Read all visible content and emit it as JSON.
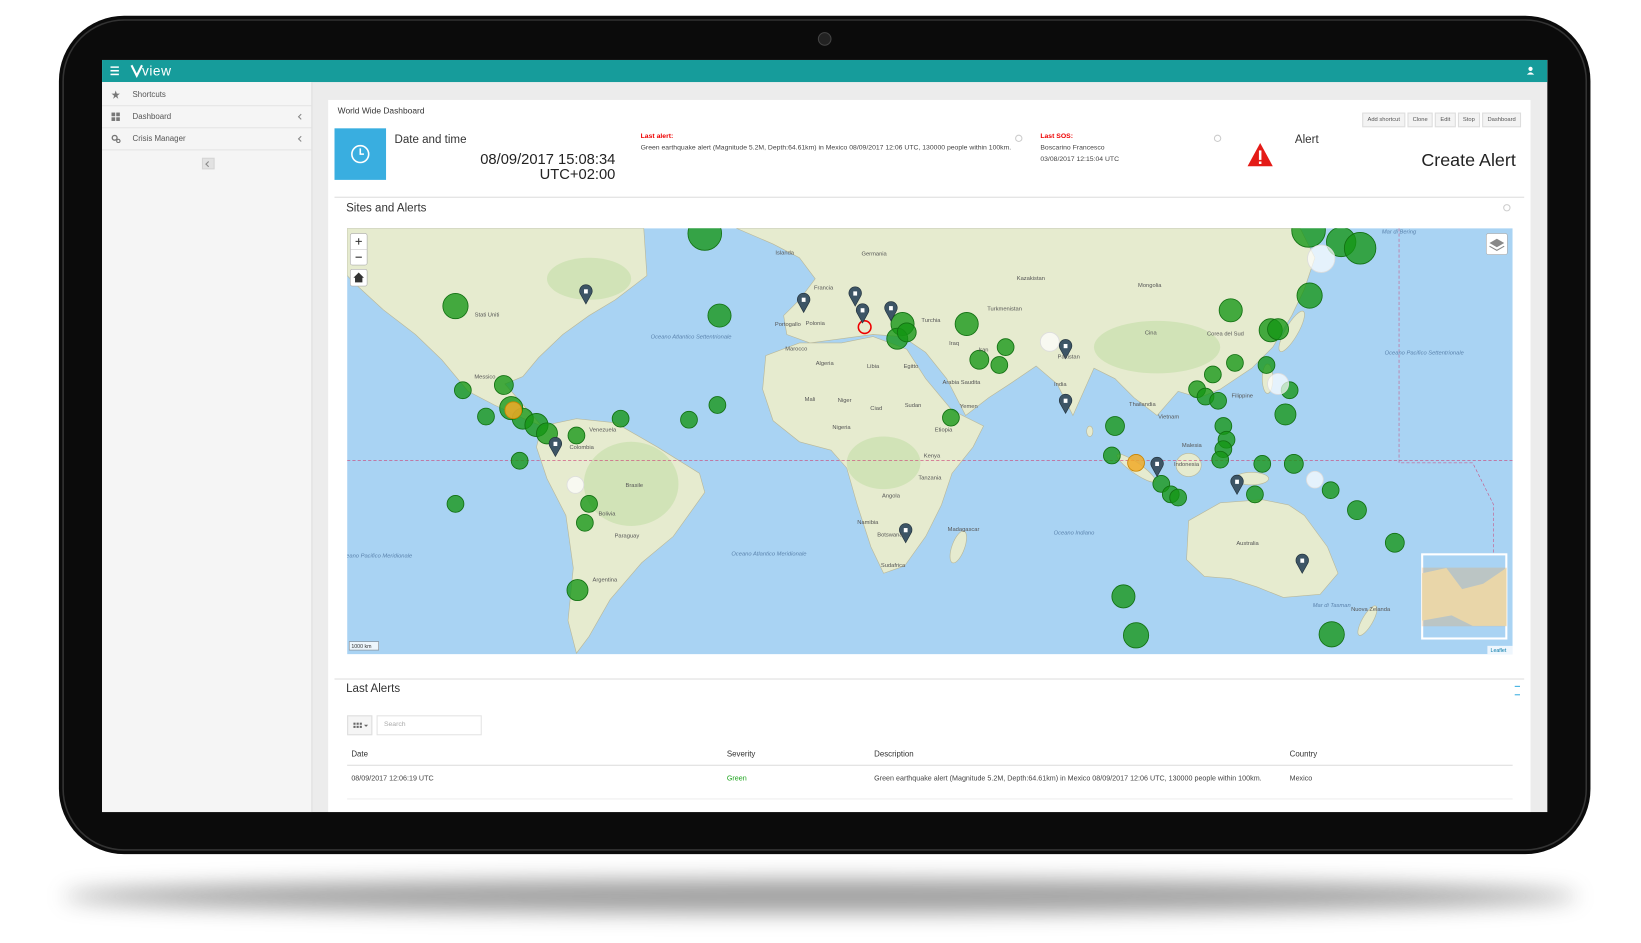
{
  "app": {
    "logo": "view"
  },
  "sidebar": {
    "items": [
      "Shortcuts",
      "Dashboard",
      "Crisis Manager"
    ]
  },
  "header": {
    "title": "World Wide Dashboard",
    "buttons": [
      "Add shortcut",
      "Clone",
      "Edit",
      "Stop",
      "Dashboard"
    ]
  },
  "datetime": {
    "label": "Date and time",
    "value": "08/09/2017 15:08:34",
    "timezone": "UTC+02:00"
  },
  "last_alert": {
    "label": "Last alert:",
    "text": "Green earthquake alert (Magnitude 5.2M, Depth:64.61km) in Mexico 08/09/2017 12:06 UTC, 130000 people within 100km."
  },
  "last_sos": {
    "label": "Last SOS:",
    "name": "Boscarino Francesco",
    "date": "03/08/2017 12:15:04 UTC"
  },
  "alert": {
    "label": "Alert",
    "action": "Create Alert"
  },
  "map": {
    "title": "Sites and Alerts",
    "labels": [
      "Stati Uniti",
      "Messico",
      "Colombia",
      "Venezuela",
      "Brasile",
      "Bolivia",
      "Paraguay",
      "Argentina",
      "Oceano Atlantico Settentrionale",
      "Oceano Atlantico Meridionale",
      "Oceano Pacifico Meridionale",
      "Islanda",
      "Francia",
      "Germania",
      "Polonia",
      "Portogallo",
      "Marocco",
      "Algeria",
      "Libia",
      "Egitto",
      "Mali",
      "Niger",
      "Ciad",
      "Sudan",
      "Nigeria",
      "Etiopia",
      "Kenya",
      "Tanzania",
      "Angola",
      "Namibia",
      "Botswana",
      "Sudafrica",
      "Madagascar",
      "Turchia",
      "Iraq",
      "Iran",
      "Arabia Saudita",
      "Yemen",
      "Kazakistan",
      "Turkmenistan",
      "Pakistan",
      "India",
      "Mongolia",
      "Cina",
      "Corea del Sud",
      "Thailandia",
      "Vietnam",
      "Filippine",
      "Malesia",
      "Indonesia",
      "Australia",
      "Nuova Zelanda",
      "Oceano Indiano",
      "Oceano Pacifico Settentrionale",
      "Mar di Bering",
      "Mar di Tasman"
    ],
    "scale": "1000 km",
    "attribution": "Leaflet"
  },
  "alerts_table": {
    "title": "Last Alerts",
    "search_placeholder": "Search",
    "columns": [
      "Date",
      "Severity",
      "Description",
      "Country"
    ],
    "rows": [
      [
        "08/09/2017 12:06:19 UTC",
        "Green",
        "Green earthquake alert (Magnitude 5.2M, Depth:64.61km) in Mexico 08/09/2017 12:06 UTC, 130000 people within 100km.",
        "Mexico"
      ]
    ]
  }
}
